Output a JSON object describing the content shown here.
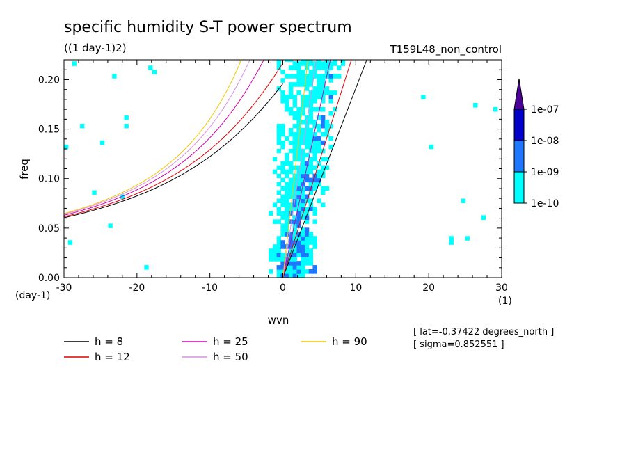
{
  "figure": {
    "title": "specific humidity S-T power spectrum",
    "units": "((1 day-1)2)",
    "run_label": "T159L48_non_control",
    "lat_note": "[ lat=-0.37422 degrees_north ]",
    "sigma_note": "[ sigma=0.852551 ]"
  },
  "chart_data": {
    "type": "heatmap",
    "title": "specific humidity S-T power spectrum",
    "subtitle": "((1 day-1)2)",
    "xlabel": "wvn",
    "ylabel": "freq",
    "x_unit": "(1)",
    "y_unit": "(day-1)",
    "xlim": [
      -30,
      30
    ],
    "ylim": [
      0,
      0.22
    ],
    "x_ticks": [
      -30,
      -20,
      -10,
      0,
      10,
      20,
      30
    ],
    "x_tick_labels": [
      "-30",
      "-20",
      "-10",
      "0",
      "10",
      "20",
      "30"
    ],
    "y_ticks": [
      0,
      0.05,
      0.1,
      0.15,
      0.2
    ],
    "y_tick_labels": [
      "0.00",
      "0.05",
      "0.10",
      "0.15",
      "0.20"
    ],
    "colorbar": {
      "levels": [
        "1e-10",
        "1e-09",
        "1e-08",
        "1e-07"
      ],
      "colors": [
        "#00ffff",
        "#1e78ff",
        "#0000c8",
        "#4b0096"
      ],
      "extend": "max"
    },
    "dispersion_curves": [
      {
        "name": "h =  8",
        "color": "#000000"
      },
      {
        "name": "h = 12",
        "color": "#e00000"
      },
      {
        "name": "h = 25",
        "color": "#d000b0"
      },
      {
        "name": "h = 50",
        "color": "#d890e0"
      },
      {
        "name": "h = 90",
        "color": "#f0c800"
      }
    ],
    "legend_position": "bottom"
  }
}
